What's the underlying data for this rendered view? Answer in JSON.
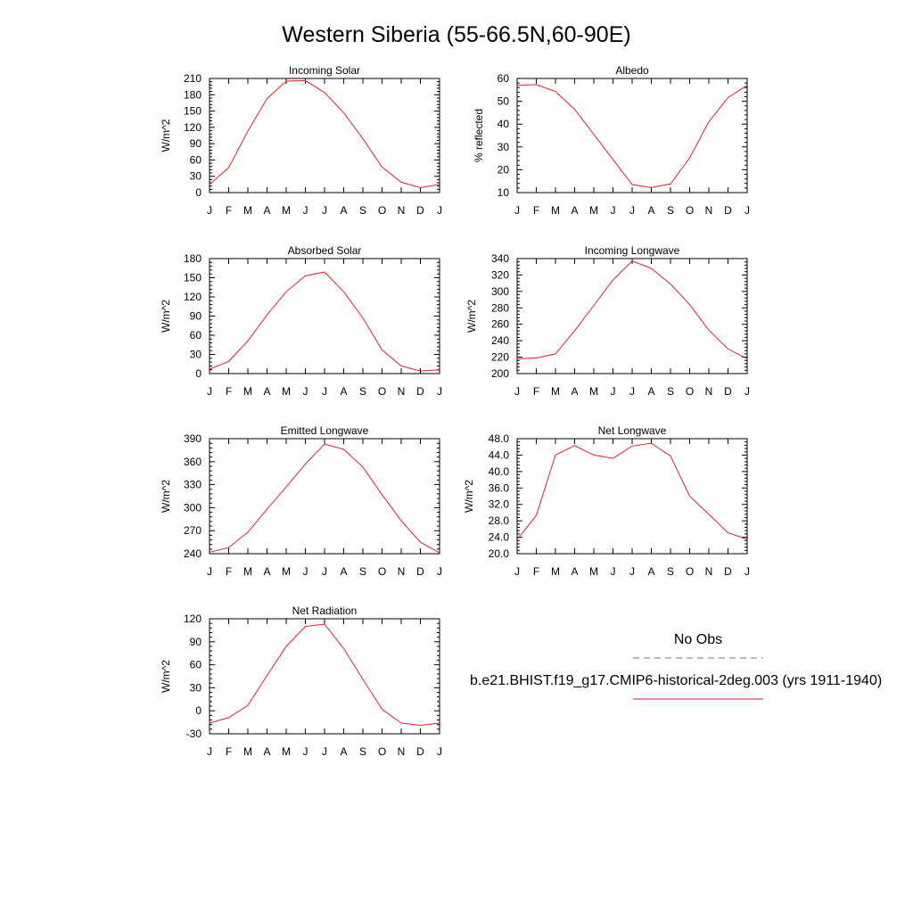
{
  "page": {
    "title": "Western Siberia (55-66.5N,60-90E)"
  },
  "legend": {
    "obs_label": "No Obs",
    "obs_color": "#6b6bd6",
    "model_label": "b.e21.BHIST.f19_g17.CMIP6-historical-2deg.003 (yrs 1911-1940)",
    "model_color": "#e8202a"
  },
  "months": [
    "J",
    "F",
    "M",
    "A",
    "M",
    "J",
    "J",
    "A",
    "S",
    "O",
    "N",
    "D",
    "J"
  ],
  "chart_data": [
    {
      "type": "line",
      "title": "Incoming Solar",
      "ylabel": "W/m^2",
      "ylim": [
        0,
        210
      ],
      "yticks": [
        "0",
        "30",
        "60",
        "90",
        "120",
        "150",
        "180",
        "210"
      ],
      "series": [
        {
          "name": "b.e21.BHIST.f19_g17.CMIP6-historical-2deg.003 (yrs 1911-1940)",
          "values": [
            15,
            46,
            113,
            173,
            205,
            206,
            184,
            147,
            99,
            47,
            19,
            9,
            15
          ]
        }
      ]
    },
    {
      "type": "line",
      "title": "Albedo",
      "ylabel": "% reflected",
      "ylim": [
        10,
        60
      ],
      "yticks": [
        "10",
        "20",
        "30",
        "40",
        "50",
        "60"
      ],
      "series": [
        {
          "name": "b.e21.BHIST.f19_g17.CMIP6-historical-2deg.003 (yrs 1911-1940)",
          "values": [
            57,
            57.3,
            54.3,
            46.5,
            35.5,
            24.5,
            13.5,
            12.2,
            13.8,
            25.2,
            41,
            51.6,
            57
          ]
        }
      ]
    },
    {
      "type": "line",
      "title": "Absorbed Solar",
      "ylabel": "W/m^2",
      "ylim": [
        0,
        180
      ],
      "yticks": [
        "0",
        "30",
        "60",
        "90",
        "120",
        "150",
        "180"
      ],
      "series": [
        {
          "name": "b.e21.BHIST.f19_g17.CMIP6-historical-2deg.003 (yrs 1911-1940)",
          "values": [
            7,
            19,
            51,
            92,
            128,
            153,
            159,
            128,
            87,
            37,
            12,
            4,
            6
          ]
        }
      ]
    },
    {
      "type": "line",
      "title": "Incoming Longwave",
      "ylabel": "W/m^2",
      "ylim": [
        200,
        340
      ],
      "yticks": [
        "200",
        "220",
        "240",
        "260",
        "280",
        "300",
        "320",
        "340"
      ],
      "series": [
        {
          "name": "b.e21.BHIST.f19_g17.CMIP6-historical-2deg.003 (yrs 1911-1940)",
          "values": [
            218,
            219,
            224,
            252,
            283,
            314,
            337,
            328,
            309,
            284,
            253,
            230,
            218
          ]
        }
      ]
    },
    {
      "type": "line",
      "title": "Emitted Longwave",
      "ylabel": "W/m^2",
      "ylim": [
        240,
        390
      ],
      "yticks": [
        "240",
        "270",
        "300",
        "330",
        "360",
        "390"
      ],
      "series": [
        {
          "name": "b.e21.BHIST.f19_g17.CMIP6-historical-2deg.003 (yrs 1911-1940)",
          "values": [
            242,
            248,
            268,
            298,
            327,
            357,
            383,
            376,
            353,
            317,
            283,
            255,
            241
          ]
        }
      ]
    },
    {
      "type": "line",
      "title": "Net Longwave",
      "ylabel": "W/m^2",
      "ylim": [
        20,
        48
      ],
      "yticks": [
        "20.0",
        "24.0",
        "28.0",
        "32.0",
        "36.0",
        "40.0",
        "44.0",
        "48.0"
      ],
      "series": [
        {
          "name": "b.e21.BHIST.f19_g17.CMIP6-historical-2deg.003 (yrs 1911-1940)",
          "values": [
            23.5,
            29.3,
            44,
            46.3,
            44,
            43.2,
            46.2,
            46.9,
            43.8,
            34,
            29.6,
            25.1,
            23.5
          ]
        }
      ]
    },
    {
      "type": "line",
      "title": "Net Radiation",
      "ylabel": "W/m^2",
      "ylim": [
        -30,
        120
      ],
      "yticks": [
        "-30",
        "0",
        "30",
        "60",
        "90",
        "120"
      ],
      "series": [
        {
          "name": "b.e21.BHIST.f19_g17.CMIP6-historical-2deg.003 (yrs 1911-1940)",
          "values": [
            -16,
            -9,
            7,
            46,
            84,
            110,
            113,
            81,
            41,
            2,
            -16,
            -19,
            -16
          ]
        }
      ]
    }
  ]
}
